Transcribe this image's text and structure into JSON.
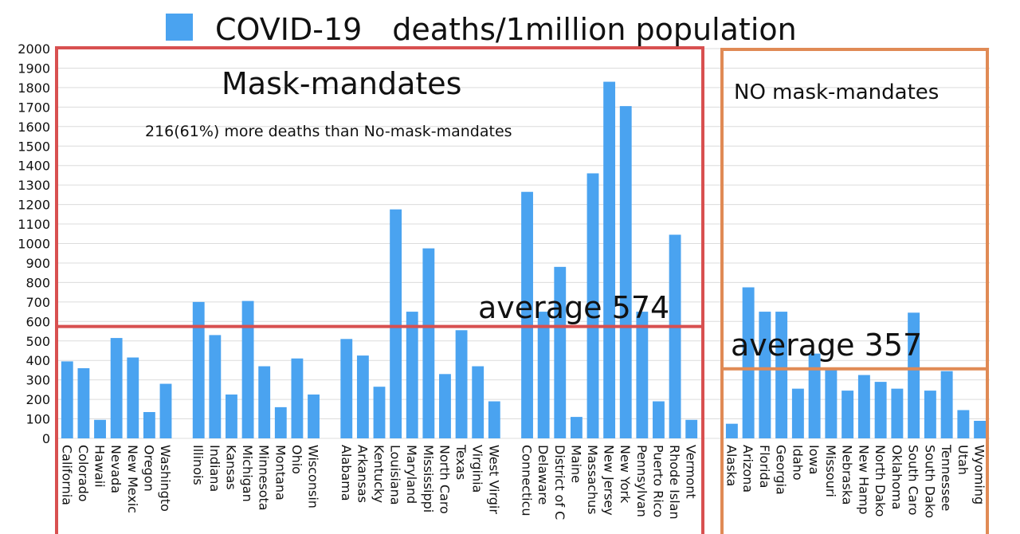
{
  "chart_data": {
    "type": "bar",
    "title": "COVID-19　deaths/1million population",
    "legend_label": "COVID-19　deaths/1million population",
    "legend_position": "top",
    "ylim": [
      0,
      2000
    ],
    "ytick_step": 100,
    "grid": true,
    "bar_color": "#4aa3f0",
    "series": [
      {
        "name": "COVID-19　deaths/1million population"
      }
    ],
    "groups": [
      {
        "label": "Mask-mandates",
        "note": "216(61%) more deaths than No-mask-mandates",
        "average_label": "average 574",
        "average": 574,
        "box_color": "#d85050",
        "categories": [
          "California",
          "Colorado",
          "Hawaii",
          "Nevada",
          "New Mexico",
          "Oregon",
          "Washington",
          "Illinois",
          "Indiana",
          "Kansas",
          "Michigan",
          "Minnesota",
          "Montana",
          "Ohio",
          "Wisconsin",
          "Alabama",
          "Arkansas",
          "Kentucky",
          "Louisiana",
          "Maryland",
          "Mississippi",
          "North Carolina",
          "Texas",
          "Virginia",
          "West Virginia",
          "Connecticut",
          "Delaware",
          "District of Columbia",
          "Maine",
          "Massachusetts",
          "New Jersey",
          "New York",
          "Pennsylvania",
          "Puerto Rico",
          "Rhode Island",
          "Vermont"
        ],
        "category_labels": [
          "California",
          "Colorado",
          "Hawaii",
          "Nevada",
          "New Mexic",
          "Oregon",
          "Washingto",
          "Illinois",
          "Indiana",
          "Kansas",
          "Michigan",
          "Minnesota",
          "Montana",
          "Ohio",
          "Wisconsin",
          "Alabama",
          "Arkansas",
          "Kentucky",
          "Louisiana",
          "Maryland",
          "Mississippi",
          "North Caro",
          "Texas",
          "Virginia",
          "West Virgir",
          "Connecticu",
          "Delaware",
          "District of C",
          "Maine",
          "Massachus",
          "New Jersey",
          "New York",
          "Pennsylvan",
          "Puerto Rico",
          "Rhode Islan",
          "Vermont"
        ],
        "values": [
          395,
          360,
          95,
          515,
          415,
          135,
          280,
          700,
          530,
          225,
          705,
          370,
          160,
          410,
          225,
          510,
          425,
          265,
          1175,
          650,
          975,
          330,
          555,
          370,
          190,
          1265,
          650,
          880,
          110,
          1360,
          1830,
          1705,
          650,
          190,
          1045,
          95
        ],
        "subgroup_breaks_after": [
          6,
          14,
          24
        ]
      },
      {
        "label": "NO mask-mandates",
        "average_label": "average 357",
        "average": 357,
        "box_color": "#e08a55",
        "categories": [
          "Alaska",
          "Arizona",
          "Florida",
          "Georgia",
          "Idaho",
          "Iowa",
          "Missouri",
          "Nebraska",
          "New Hampshire",
          "North Dakota",
          "Oklahoma",
          "South Carolina",
          "South Dakota",
          "Tennessee",
          "Utah",
          "Wyoming"
        ],
        "category_labels": [
          "Alaska",
          "Arizona",
          "Florida",
          "Georgia",
          "Idaho",
          "Iowa",
          "Missouri",
          "Nebraska",
          "New Hamp",
          "North Dako",
          "Oklahoma",
          "South Caro",
          "South Dako",
          "Tennessee",
          "Utah",
          "Wyoming"
        ],
        "values": [
          75,
          775,
          650,
          650,
          255,
          435,
          355,
          245,
          325,
          290,
          255,
          645,
          245,
          345,
          145,
          90
        ]
      }
    ]
  }
}
